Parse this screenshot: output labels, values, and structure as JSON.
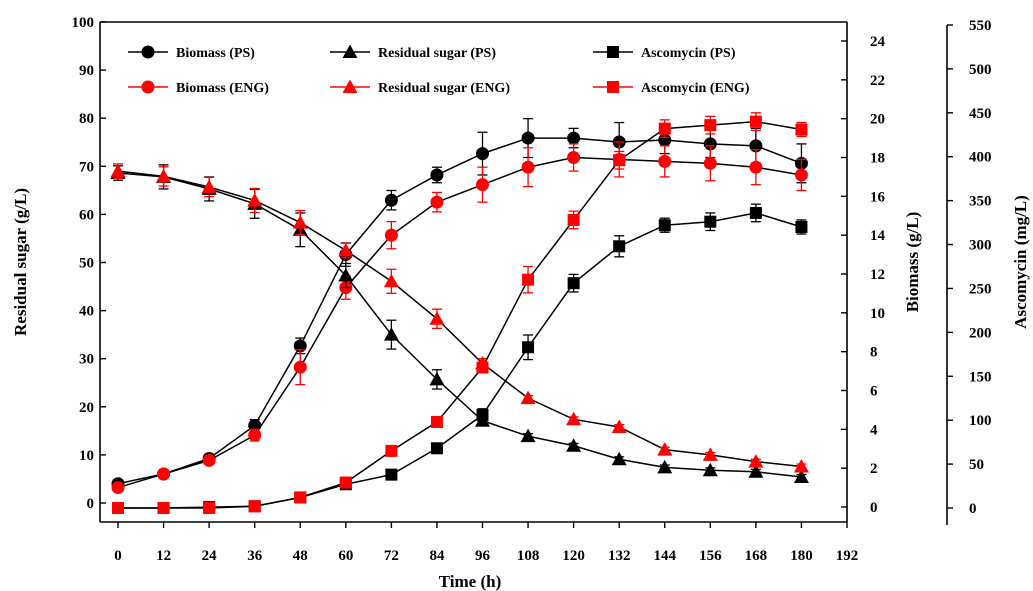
{
  "chart_data": {
    "type": "line",
    "xlabel": "Time (h)",
    "ylabel_left": "Residual sugar (g/L)",
    "ylabel_right1": "Biomass (g/L)",
    "ylabel_right2": "Ascomycin (mg/L)",
    "x_ticks": [
      0,
      12,
      24,
      36,
      48,
      60,
      72,
      84,
      96,
      108,
      120,
      132,
      144,
      156,
      168,
      180,
      192
    ],
    "y_left_ticks": [
      0,
      10,
      20,
      30,
      40,
      50,
      60,
      70,
      80,
      90,
      100
    ],
    "y_right1_ticks": [
      0,
      2,
      4,
      6,
      8,
      10,
      12,
      14,
      16,
      18,
      20,
      22,
      24
    ],
    "y_right2_ticks": [
      0,
      50,
      100,
      150,
      200,
      250,
      300,
      350,
      400,
      450,
      500,
      550
    ],
    "xlim": [
      0,
      192
    ],
    "ylim_left": [
      0,
      100
    ],
    "ylim_right1": [
      0,
      24
    ],
    "ylim_right2": [
      0,
      550
    ],
    "x": [
      0,
      12,
      24,
      36,
      48,
      60,
      72,
      84,
      96,
      108,
      120,
      132,
      144,
      156,
      168,
      180
    ],
    "colors": {
      "PS": "#000000",
      "ENG": "#ff0000"
    },
    "series": [
      {
        "name": "Biomass (PS)",
        "axis": "biomass",
        "marker": "circle",
        "color": "PS",
        "values": [
          1.2,
          1.7,
          2.5,
          4.2,
          8.3,
          13.0,
          15.8,
          17.1,
          18.2,
          19.0,
          19.0,
          18.8,
          18.9,
          18.7,
          18.6,
          17.7
        ],
        "errors": [
          0.2,
          0.2,
          0.2,
          0.3,
          0.4,
          0.6,
          0.5,
          0.4,
          1.1,
          1.0,
          0.5,
          1.0,
          0.7,
          0.7,
          0.9,
          1.0
        ]
      },
      {
        "name": "Biomass (ENG)",
        "axis": "biomass",
        "marker": "circle",
        "color": "ENG",
        "values": [
          1.0,
          1.7,
          2.4,
          3.7,
          7.2,
          11.3,
          14.0,
          15.7,
          16.6,
          17.5,
          18.0,
          17.9,
          17.8,
          17.7,
          17.5,
          17.1
        ],
        "errors": [
          0.2,
          0.2,
          0.2,
          0.3,
          0.9,
          0.6,
          0.7,
          0.5,
          0.9,
          1.0,
          0.7,
          0.9,
          0.8,
          0.9,
          0.9,
          0.8
        ]
      },
      {
        "name": "Residual sugar (PS)",
        "axis": "sugar",
        "marker": "triangle",
        "color": "PS",
        "values": [
          68.6,
          67.8,
          65.3,
          62.2,
          56.8,
          47.3,
          35.0,
          25.7,
          17.1,
          13.9,
          11.9,
          9.1,
          7.4,
          6.8,
          6.5,
          5.4
        ],
        "errors": [
          1.5,
          2.5,
          2.5,
          3.0,
          3.5,
          2.5,
          3.0,
          2.0,
          1.0,
          0.5,
          0.5,
          0.5,
          0.5,
          0.5,
          0.5,
          0.5
        ]
      },
      {
        "name": "Residual sugar (ENG)",
        "axis": "sugar",
        "marker": "triangle",
        "color": "ENG",
        "values": [
          69.0,
          67.9,
          65.7,
          62.9,
          58.3,
          52.5,
          46.1,
          38.3,
          29.0,
          21.8,
          17.4,
          15.8,
          11.1,
          10.0,
          8.6,
          7.6
        ],
        "errors": [
          1.5,
          2.0,
          2.0,
          2.5,
          2.5,
          1.5,
          2.5,
          2.0,
          1.0,
          0.5,
          0.5,
          0.5,
          0.5,
          0.5,
          0.5,
          0.5
        ]
      },
      {
        "name": "Ascomycin (PS)",
        "axis": "ascomycin",
        "marker": "square",
        "color": "PS",
        "values": [
          0,
          0,
          1,
          2,
          12,
          27,
          38,
          68,
          106,
          183,
          256,
          298,
          322,
          326,
          336,
          320
        ],
        "errors": [
          0,
          0,
          0,
          0,
          2,
          3,
          4,
          4,
          7,
          14,
          10,
          12,
          8,
          10,
          10,
          8
        ]
      },
      {
        "name": "Ascomycin (ENG)",
        "axis": "ascomycin",
        "marker": "square",
        "color": "ENG",
        "values": [
          0,
          0,
          0,
          2,
          12,
          29,
          65,
          98,
          160,
          260,
          328,
          396,
          432,
          436,
          440,
          431
        ],
        "errors": [
          0,
          0,
          0,
          0,
          2,
          3,
          4,
          4,
          6,
          15,
          10,
          10,
          10,
          10,
          10,
          8
        ]
      }
    ],
    "legend": [
      "Biomass (PS)",
      "Residual sugar  (PS)",
      "Ascomycin (PS)",
      "Biomass (ENG)",
      "Residual sugar  (ENG)",
      "Ascomycin (ENG)"
    ],
    "legend_placement": "top",
    "grid": false
  }
}
